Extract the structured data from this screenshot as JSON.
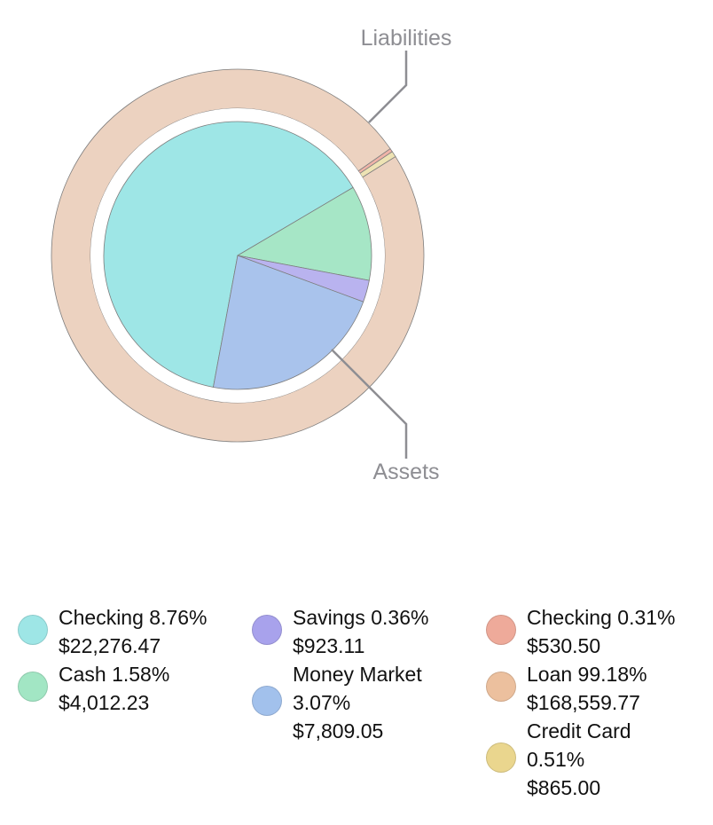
{
  "chart_data": {
    "type": "pie",
    "rings": [
      {
        "name": "Assets",
        "slices": [
          {
            "label": "Checking",
            "percent": "8.76%",
            "value": 22276.47,
            "value_text": "$22,276.47",
            "color": "#9ee6e6"
          },
          {
            "label": "Cash",
            "percent": "1.58%",
            "value": 4012.23,
            "value_text": "$4,012.23",
            "color": "#a6e6c6"
          },
          {
            "label": "Savings",
            "percent": "0.36%",
            "value": 923.11,
            "value_text": "$923.11",
            "color": "#b9b3ef"
          },
          {
            "label": "Money Market",
            "percent": "3.07%",
            "value": 7809.05,
            "value_text": "$7,809.05",
            "color": "#a9c3ec"
          }
        ]
      },
      {
        "name": "Liabilities",
        "slices": [
          {
            "label": "Checking",
            "percent": "0.31%",
            "value": 530.5,
            "value_text": "$530.50",
            "color": "#efb4a8"
          },
          {
            "label": "Credit Card",
            "percent": "0.51%",
            "value": 865.0,
            "value_text": "$865.00",
            "color": "#eee3b4"
          },
          {
            "label": "Loan",
            "percent": "99.18%",
            "value": 168559.77,
            "value_text": "$168,559.77",
            "color": "#ecd2c0"
          }
        ]
      }
    ]
  },
  "legend": {
    "columns": [
      [
        {
          "line1": "Checking 8.76%",
          "line2": "$22,276.47",
          "color": "#9ee6e6"
        },
        {
          "line1": "Cash 1.58%",
          "line2": "$4,012.23",
          "color": "#a2e6c4"
        }
      ],
      [
        {
          "line1": "Savings 0.36%",
          "line2": "$923.11",
          "color": "#a8a2ec"
        },
        {
          "line1": "Money Market",
          "line2": "3.07%",
          "line3": "$7,809.05",
          "color": "#a2c1ec"
        }
      ],
      [
        {
          "line1": "Checking 0.31%",
          "line2": "$530.50",
          "color": "#eeaa9a"
        },
        {
          "line1": "Loan 99.18%",
          "line2": "$168,559.77",
          "color": "#ecc09e"
        },
        {
          "line1": "Credit Card",
          "line2": "0.51%",
          "line3": "$865.00",
          "color": "#ead68e"
        }
      ]
    ]
  }
}
